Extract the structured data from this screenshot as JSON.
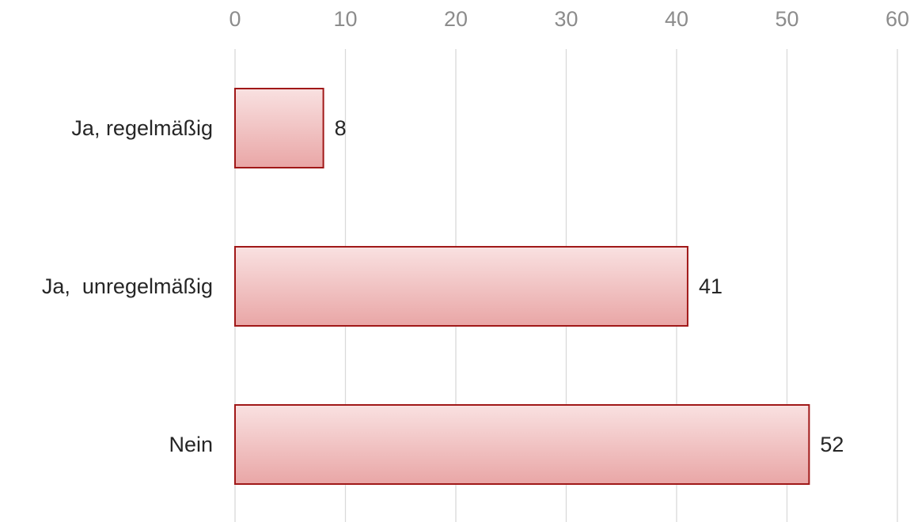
{
  "chart_data": {
    "type": "bar",
    "orientation": "horizontal",
    "categories": [
      "Ja, regelmäßig",
      "Ja,  unregelmäßig",
      "Nein"
    ],
    "values": [
      8,
      41,
      52
    ],
    "data_labels": [
      "8",
      "41",
      "52"
    ],
    "title": "",
    "xlabel": "",
    "ylabel": "",
    "xlim": [
      0,
      60
    ],
    "x_ticks": [
      0,
      10,
      20,
      30,
      40,
      50,
      60
    ],
    "x_tick_labels": [
      "0",
      "10",
      "20",
      "30",
      "40",
      "50",
      "60"
    ],
    "x_axis_position": "top",
    "grid": true,
    "legend": "none",
    "colors": {
      "bar_fill_top": "#f9e1e1",
      "bar_fill_bottom": "#e9a6a6",
      "bar_border": "#a01818",
      "grid": "#d9d9d9",
      "tick_label": "#8c8c8c",
      "category_label": "#262626",
      "data_label": "#262626"
    }
  }
}
